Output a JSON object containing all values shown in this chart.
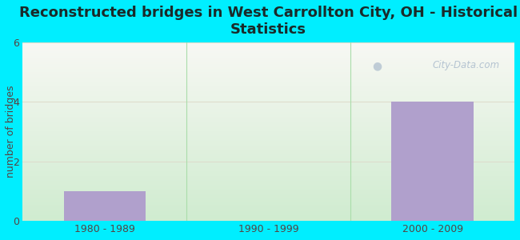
{
  "title": "Reconstructed bridges in West Carrollton City, OH - Historical\nStatistics",
  "categories": [
    "1980 - 1989",
    "1990 - 1999",
    "2000 - 2009"
  ],
  "values": [
    1,
    0,
    4
  ],
  "bar_color": "#b0a0cc",
  "ylabel": "number of bridges",
  "ylim": [
    0,
    6
  ],
  "yticks": [
    0,
    2,
    4,
    6
  ],
  "bg_color": "#00eeff",
  "plot_bg_bottom": "#d0ecd0",
  "plot_bg_top": "#f8f8f4",
  "watermark": "City-Data.com",
  "title_fontsize": 13,
  "tick_label_color": "#554444",
  "bar_width": 0.5,
  "grid_color": "#ddddcc",
  "separator_color": "#aaddaa"
}
